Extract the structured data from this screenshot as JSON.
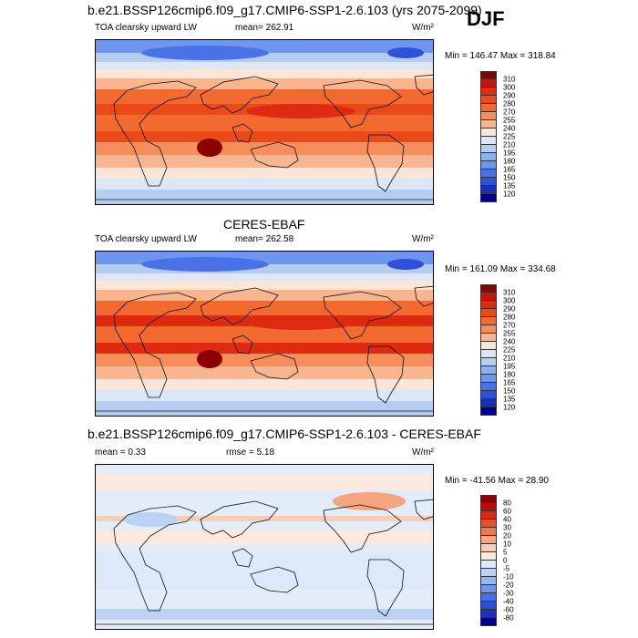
{
  "season": "DJF",
  "panels": [
    {
      "title": "b.e21.BSSP126cmip6.f09_g17.CMIP6-SSP1-2.6.103 (yrs 2075-2099)",
      "var_label": "TOA clearsky upward LW",
      "stat1": "mean= 262.91",
      "stat2": "",
      "units": "W/m²",
      "minmax": "Min = 146.47 Max = 318.84",
      "levels": [
        "310",
        "300",
        "290",
        "280",
        "270",
        "255",
        "240",
        "225",
        "210",
        "195",
        "180",
        "165",
        "150",
        "135",
        "120"
      ],
      "colors": [
        "#8b0000",
        "#c0160c",
        "#dd2a10",
        "#ea4a1a",
        "#f26a30",
        "#f58e5a",
        "#f8b690",
        "#fae6d8",
        "#dbe7f6",
        "#b6cdf2",
        "#8eaff0",
        "#6e96ee",
        "#4a72e8",
        "#2f50d8",
        "#1a2fb8",
        "#000090"
      ]
    },
    {
      "title": "CERES-EBAF",
      "var_label": "TOA clearsky upward LW",
      "stat1": "mean= 262.58",
      "stat2": "",
      "units": "W/m²",
      "minmax": "Min = 161.09 Max = 334.68",
      "levels": [
        "310",
        "300",
        "290",
        "280",
        "270",
        "255",
        "240",
        "225",
        "210",
        "195",
        "180",
        "165",
        "150",
        "135",
        "120"
      ],
      "colors": [
        "#8b0000",
        "#c0160c",
        "#dd2a10",
        "#ea4a1a",
        "#f26a30",
        "#f58e5a",
        "#f8b690",
        "#fae6d8",
        "#dbe7f6",
        "#b6cdf2",
        "#8eaff0",
        "#6e96ee",
        "#4a72e8",
        "#2f50d8",
        "#1a2fb8",
        "#000090"
      ]
    },
    {
      "title": "b.e21.BSSP126cmip6.f09_g17.CMIP6-SSP1-2.6.103 - CERES-EBAF",
      "var_label": "",
      "stat1": "mean =   0.33",
      "stat2": "rmse =   5.18",
      "units": "W/m²",
      "minmax": "Min = -41.56 Max =  28.90",
      "levels": [
        "80",
        "60",
        "40",
        "30",
        "20",
        "10",
        "5",
        "0",
        "-5",
        "-10",
        "-20",
        "-30",
        "-40",
        "-60",
        "-80"
      ],
      "colors": [
        "#8b0000",
        "#b80c0c",
        "#d42a16",
        "#e6502c",
        "#f07a50",
        "#f6a580",
        "#f9ccb4",
        "#fbe8de",
        "#dde9f8",
        "#bcd2f4",
        "#96b6ee",
        "#7096ea",
        "#4a72e6",
        "#2e4ed6",
        "#1a2fb8",
        "#000090"
      ]
    }
  ]
}
